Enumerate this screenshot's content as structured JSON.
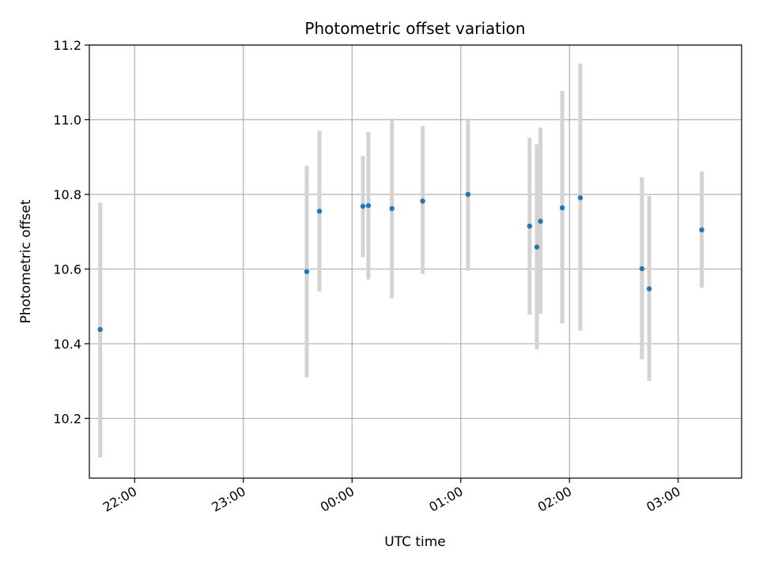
{
  "chart_data": {
    "type": "scatter",
    "title": "Photometric offset variation",
    "xlabel": "UTC time",
    "ylabel": "Photometric offset",
    "x_unit": "time (HH:MM, UTC)",
    "xlim": [
      "21:35",
      "03:35"
    ],
    "ylim": [
      10.04,
      11.2
    ],
    "x_ticks": [
      "22:00",
      "23:00",
      "00:00",
      "01:00",
      "02:00",
      "03:00"
    ],
    "y_ticks": [
      "10.2",
      "10.4",
      "10.6",
      "10.8",
      "11.0",
      "11.2"
    ],
    "grid": true,
    "point_color": "#1f77b4",
    "errorbar_color": "#d3d3d3",
    "points": [
      {
        "x": "21:41",
        "y": 10.438,
        "yerr_low": 10.095,
        "yerr_high": 10.778
      },
      {
        "x": "23:35",
        "y": 10.593,
        "yerr_low": 10.31,
        "yerr_high": 10.877
      },
      {
        "x": "23:42",
        "y": 10.755,
        "yerr_low": 10.54,
        "yerr_high": 10.97
      },
      {
        "x": "00:06",
        "y": 10.768,
        "yerr_low": 10.632,
        "yerr_high": 10.903
      },
      {
        "x": "00:09",
        "y": 10.77,
        "yerr_low": 10.572,
        "yerr_high": 10.967
      },
      {
        "x": "00:22",
        "y": 10.762,
        "yerr_low": 10.522,
        "yerr_high": 11.004
      },
      {
        "x": "00:39",
        "y": 10.782,
        "yerr_low": 10.587,
        "yerr_high": 10.983
      },
      {
        "x": "01:04",
        "y": 10.8,
        "yerr_low": 10.595,
        "yerr_high": 11.004
      },
      {
        "x": "01:38",
        "y": 10.715,
        "yerr_low": 10.478,
        "yerr_high": 10.952
      },
      {
        "x": "01:42",
        "y": 10.659,
        "yerr_low": 10.385,
        "yerr_high": 10.934
      },
      {
        "x": "01:44",
        "y": 10.728,
        "yerr_low": 10.48,
        "yerr_high": 10.979
      },
      {
        "x": "01:56",
        "y": 10.764,
        "yerr_low": 10.454,
        "yerr_high": 11.077
      },
      {
        "x": "02:06",
        "y": 10.791,
        "yerr_low": 10.435,
        "yerr_high": 11.15
      },
      {
        "x": "02:40",
        "y": 10.601,
        "yerr_low": 10.358,
        "yerr_high": 10.846
      },
      {
        "x": "02:44",
        "y": 10.547,
        "yerr_low": 10.3,
        "yerr_high": 10.796
      },
      {
        "x": "03:13",
        "y": 10.705,
        "yerr_low": 10.55,
        "yerr_high": 10.861
      }
    ]
  }
}
